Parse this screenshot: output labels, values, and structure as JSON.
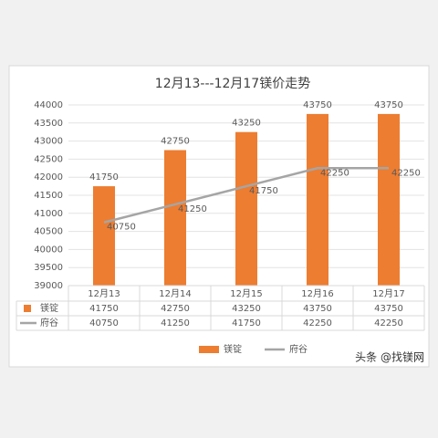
{
  "chart_data": {
    "type": "bar",
    "title": "12月13---12月17镁价走势",
    "categories": [
      "12月13",
      "12月14",
      "12月15",
      "12月16",
      "12月17"
    ],
    "series": [
      {
        "name": "镁锭",
        "type": "bar",
        "color": "#ED7D31",
        "values": [
          41750,
          42750,
          43250,
          43750,
          43750
        ]
      },
      {
        "name": "府谷",
        "type": "line",
        "color": "#A5A5A5",
        "values": [
          40750,
          41250,
          41750,
          42250,
          42250
        ]
      }
    ],
    "ylim": [
      39000,
      44000
    ],
    "yticks": [
      39000,
      39500,
      40000,
      40500,
      41000,
      41500,
      42000,
      42500,
      43000,
      43500,
      44000
    ],
    "grid": true,
    "legend": "bottom",
    "data_table": true,
    "watermark": "头条 @找镁网"
  }
}
